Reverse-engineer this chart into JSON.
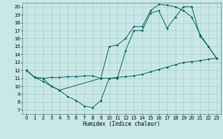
{
  "xlabel": "Humidex (Indice chaleur)",
  "bg_color": "#c8e8e8",
  "grid_color": "#b0c8c8",
  "line_color": "#006060",
  "xlim": [
    -0.5,
    23.5
  ],
  "ylim": [
    6.5,
    20.5
  ],
  "xticks": [
    0,
    1,
    2,
    3,
    4,
    5,
    6,
    7,
    8,
    9,
    10,
    11,
    12,
    13,
    14,
    15,
    16,
    17,
    18,
    19,
    20,
    21,
    22,
    23
  ],
  "yticks": [
    7,
    8,
    9,
    10,
    11,
    12,
    13,
    14,
    15,
    16,
    17,
    18,
    19,
    20
  ],
  "line1_x": [
    0,
    1,
    2,
    3,
    4,
    5,
    6,
    7,
    8,
    9,
    10,
    11,
    12,
    13,
    14,
    15,
    16,
    17,
    18,
    19,
    20,
    21,
    22,
    23
  ],
  "line1_y": [
    12,
    11.1,
    10.6,
    10.0,
    9.5,
    8.7,
    8.2,
    7.5,
    7.3,
    8.2,
    11.0,
    11.1,
    11.2,
    11.3,
    11.5,
    11.8,
    12.1,
    12.4,
    12.7,
    13.0,
    13.1,
    13.2,
    13.4,
    13.5
  ],
  "line2_x": [
    0,
    1,
    2,
    3,
    4,
    5,
    6,
    7,
    8,
    9,
    10,
    11,
    12,
    13,
    14,
    15,
    16,
    17,
    18,
    19,
    20,
    21,
    22,
    23
  ],
  "line2_y": [
    12,
    11.1,
    11.0,
    11.1,
    11.1,
    11.2,
    11.2,
    11.3,
    11.3,
    11.0,
    11.0,
    11.0,
    14.5,
    17.0,
    17.0,
    19.2,
    19.5,
    17.3,
    18.7,
    20.0,
    20.0,
    16.3,
    15.0,
    13.5
  ],
  "line3_x": [
    0,
    1,
    2,
    3,
    4,
    9,
    10,
    11,
    12,
    13,
    14,
    15,
    16,
    17,
    18,
    19,
    20,
    21,
    22,
    23
  ],
  "line3_y": [
    12,
    11.1,
    11.0,
    10.0,
    9.5,
    11.0,
    15.0,
    15.2,
    16.0,
    17.5,
    17.5,
    19.5,
    20.3,
    20.2,
    20.0,
    19.5,
    18.7,
    16.5,
    15.0,
    13.5
  ]
}
